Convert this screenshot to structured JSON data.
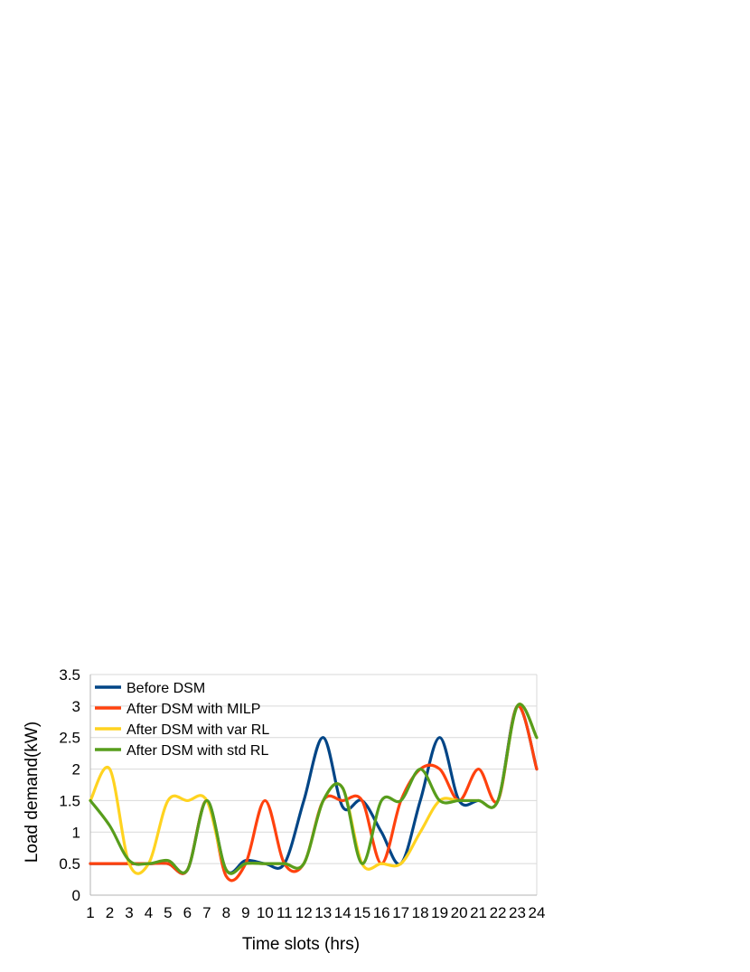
{
  "chart_data": {
    "type": "line",
    "title": "",
    "xlabel": "Time slots (hrs)",
    "ylabel": "Load demand(kW)",
    "x": [
      1,
      2,
      3,
      4,
      5,
      6,
      7,
      8,
      9,
      10,
      11,
      12,
      13,
      14,
      15,
      16,
      17,
      18,
      19,
      20,
      21,
      22,
      23,
      24
    ],
    "xlim": [
      1,
      24
    ],
    "ylim": [
      0,
      3.5
    ],
    "yticks": [
      "0",
      "0.5",
      "1",
      "1.5",
      "2",
      "2.5",
      "3",
      "3.5"
    ],
    "xticks": [
      "1",
      "2",
      "3",
      "4",
      "5",
      "6",
      "7",
      "8",
      "9",
      "10",
      "11",
      "12",
      "13",
      "14",
      "15",
      "16",
      "17",
      "18",
      "19",
      "20",
      "21",
      "22",
      "23",
      "24"
    ],
    "grid": true,
    "legend_position": "top-left",
    "series": [
      {
        "name": "Before DSM",
        "color": "#004586",
        "values": [
          0.5,
          0.5,
          0.5,
          0.5,
          0.5,
          0.4,
          1.5,
          0.4,
          0.55,
          0.5,
          0.5,
          1.5,
          2.5,
          1.4,
          1.5,
          1.0,
          0.5,
          1.5,
          2.5,
          1.5,
          1.5,
          1.5,
          3.0,
          2.0
        ]
      },
      {
        "name": "After DSM with MILP",
        "color": "#ff420e",
        "values": [
          0.5,
          0.5,
          0.5,
          0.5,
          0.5,
          0.4,
          1.5,
          0.3,
          0.5,
          1.5,
          0.5,
          0.5,
          1.5,
          1.5,
          1.5,
          0.5,
          1.5,
          2.0,
          2.0,
          1.5,
          2.0,
          1.5,
          3.0,
          2.0
        ]
      },
      {
        "name": "After DSM with var RL",
        "color": "#ffd320",
        "values": [
          1.5,
          2.0,
          0.5,
          0.5,
          1.5,
          1.5,
          1.5,
          0.4,
          0.5,
          0.5,
          0.5,
          0.5,
          1.5,
          1.7,
          0.5,
          0.5,
          0.5,
          1.0,
          1.5,
          1.5,
          1.5,
          1.5,
          3.0,
          2.5
        ]
      },
      {
        "name": "After DSM with std RL",
        "color": "#579d1c",
        "values": [
          1.5,
          1.1,
          0.55,
          0.5,
          0.55,
          0.4,
          1.5,
          0.4,
          0.5,
          0.5,
          0.5,
          0.5,
          1.5,
          1.7,
          0.5,
          1.5,
          1.5,
          2.0,
          1.5,
          1.5,
          1.5,
          1.5,
          3.0,
          2.5
        ]
      }
    ]
  }
}
